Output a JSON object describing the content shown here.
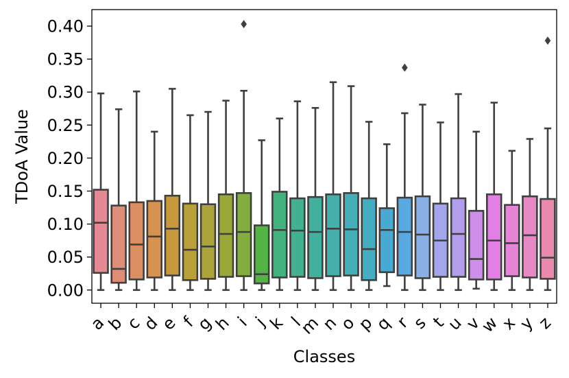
{
  "chart_data": {
    "type": "box",
    "title": "",
    "xlabel": "Classes",
    "ylabel": "TDoA Value",
    "ylim": [
      -0.02,
      0.425
    ],
    "y_ticks": [
      "0.00",
      "0.05",
      "0.10",
      "0.15",
      "0.20",
      "0.25",
      "0.30",
      "0.35",
      "0.40"
    ],
    "grid": false,
    "categories": [
      "a",
      "b",
      "c",
      "d",
      "e",
      "f",
      "g",
      "h",
      "i",
      "j",
      "k",
      "l",
      "m",
      "n",
      "o",
      "p",
      "q",
      "r",
      "s",
      "t",
      "u",
      "v",
      "w",
      "x",
      "y",
      "z"
    ],
    "boxes": [
      {
        "label": "a",
        "color": "#e58a94",
        "whislo": 0.0,
        "q1": 0.026,
        "med": 0.102,
        "q3": 0.152,
        "whishi": 0.298,
        "fliers": []
      },
      {
        "label": "b",
        "color": "#df8c79",
        "whislo": 0.0,
        "q1": 0.011,
        "med": 0.032,
        "q3": 0.128,
        "whishi": 0.274,
        "fliers": []
      },
      {
        "label": "c",
        "color": "#dc8e63",
        "whislo": 0.0,
        "q1": 0.016,
        "med": 0.069,
        "q3": 0.133,
        "whishi": 0.301,
        "fliers": []
      },
      {
        "label": "d",
        "color": "#d59251",
        "whislo": 0.0,
        "q1": 0.019,
        "med": 0.081,
        "q3": 0.135,
        "whishi": 0.24,
        "fliers": []
      },
      {
        "label": "e",
        "color": "#c7993d",
        "whislo": 0.0,
        "q1": 0.022,
        "med": 0.093,
        "q3": 0.143,
        "whishi": 0.305,
        "fliers": []
      },
      {
        "label": "f",
        "color": "#b9a03a",
        "whislo": 0.0,
        "q1": 0.015,
        "med": 0.061,
        "q3": 0.131,
        "whishi": 0.265,
        "fliers": []
      },
      {
        "label": "g",
        "color": "#aca43b",
        "whislo": 0.0,
        "q1": 0.017,
        "med": 0.066,
        "q3": 0.13,
        "whishi": 0.27,
        "fliers": []
      },
      {
        "label": "h",
        "color": "#9aa83a",
        "whislo": 0.0,
        "q1": 0.02,
        "med": 0.085,
        "q3": 0.145,
        "whishi": 0.287,
        "fliers": []
      },
      {
        "label": "i",
        "color": "#84ad3f",
        "whislo": 0.0,
        "q1": 0.021,
        "med": 0.088,
        "q3": 0.147,
        "whishi": 0.302,
        "fliers": [
          0.403
        ]
      },
      {
        "label": "j",
        "color": "#55b345",
        "whislo": 0.0,
        "q1": 0.01,
        "med": 0.024,
        "q3": 0.098,
        "whishi": 0.227,
        "fliers": []
      },
      {
        "label": "k",
        "color": "#43b27f",
        "whislo": 0.0,
        "q1": 0.019,
        "med": 0.091,
        "q3": 0.149,
        "whishi": 0.26,
        "fliers": []
      },
      {
        "label": "l",
        "color": "#43b191",
        "whislo": 0.0,
        "q1": 0.02,
        "med": 0.09,
        "q3": 0.139,
        "whishi": 0.286,
        "fliers": []
      },
      {
        "label": "m",
        "color": "#43b09f",
        "whislo": 0.0,
        "q1": 0.018,
        "med": 0.088,
        "q3": 0.141,
        "whishi": 0.276,
        "fliers": []
      },
      {
        "label": "n",
        "color": "#44afab",
        "whislo": 0.0,
        "q1": 0.021,
        "med": 0.093,
        "q3": 0.145,
        "whishi": 0.315,
        "fliers": []
      },
      {
        "label": "o",
        "color": "#45aeb6",
        "whislo": 0.0,
        "q1": 0.022,
        "med": 0.092,
        "q3": 0.147,
        "whishi": 0.309,
        "fliers": []
      },
      {
        "label": "p",
        "color": "#46adc1",
        "whislo": 0.0,
        "q1": 0.015,
        "med": 0.062,
        "q3": 0.139,
        "whishi": 0.255,
        "fliers": []
      },
      {
        "label": "q",
        "color": "#48aad2",
        "whislo": 0.006,
        "q1": 0.027,
        "med": 0.091,
        "q3": 0.124,
        "whishi": 0.221,
        "fliers": []
      },
      {
        "label": "r",
        "color": "#59a8e0",
        "whislo": 0.0,
        "q1": 0.022,
        "med": 0.088,
        "q3": 0.14,
        "whishi": 0.268,
        "fliers": [
          0.337
        ]
      },
      {
        "label": "s",
        "color": "#8bb0e8",
        "whislo": 0.0,
        "q1": 0.018,
        "med": 0.084,
        "q3": 0.142,
        "whishi": 0.281,
        "fliers": []
      },
      {
        "label": "t",
        "color": "#a3a6ea",
        "whislo": 0.0,
        "q1": 0.02,
        "med": 0.075,
        "q3": 0.131,
        "whishi": 0.254,
        "fliers": []
      },
      {
        "label": "u",
        "color": "#b39ded",
        "whislo": 0.0,
        "q1": 0.02,
        "med": 0.085,
        "q3": 0.139,
        "whishi": 0.297,
        "fliers": []
      },
      {
        "label": "v",
        "color": "#cd8fe9",
        "whislo": 0.002,
        "q1": 0.016,
        "med": 0.047,
        "q3": 0.12,
        "whishi": 0.24,
        "fliers": []
      },
      {
        "label": "w",
        "color": "#e17fe5",
        "whislo": 0.0,
        "q1": 0.016,
        "med": 0.075,
        "q3": 0.145,
        "whishi": 0.284,
        "fliers": []
      },
      {
        "label": "x",
        "color": "#e585d6",
        "whislo": 0.0,
        "q1": 0.021,
        "med": 0.071,
        "q3": 0.129,
        "whishi": 0.211,
        "fliers": []
      },
      {
        "label": "y",
        "color": "#e789c3",
        "whislo": 0.0,
        "q1": 0.019,
        "med": 0.083,
        "q3": 0.142,
        "whishi": 0.229,
        "fliers": []
      },
      {
        "label": "z",
        "color": "#e88aae",
        "whislo": 0.0,
        "q1": 0.017,
        "med": 0.049,
        "q3": 0.138,
        "whishi": 0.245,
        "fliers": [
          0.378
        ]
      }
    ],
    "line_color": "#3f3f3f"
  }
}
